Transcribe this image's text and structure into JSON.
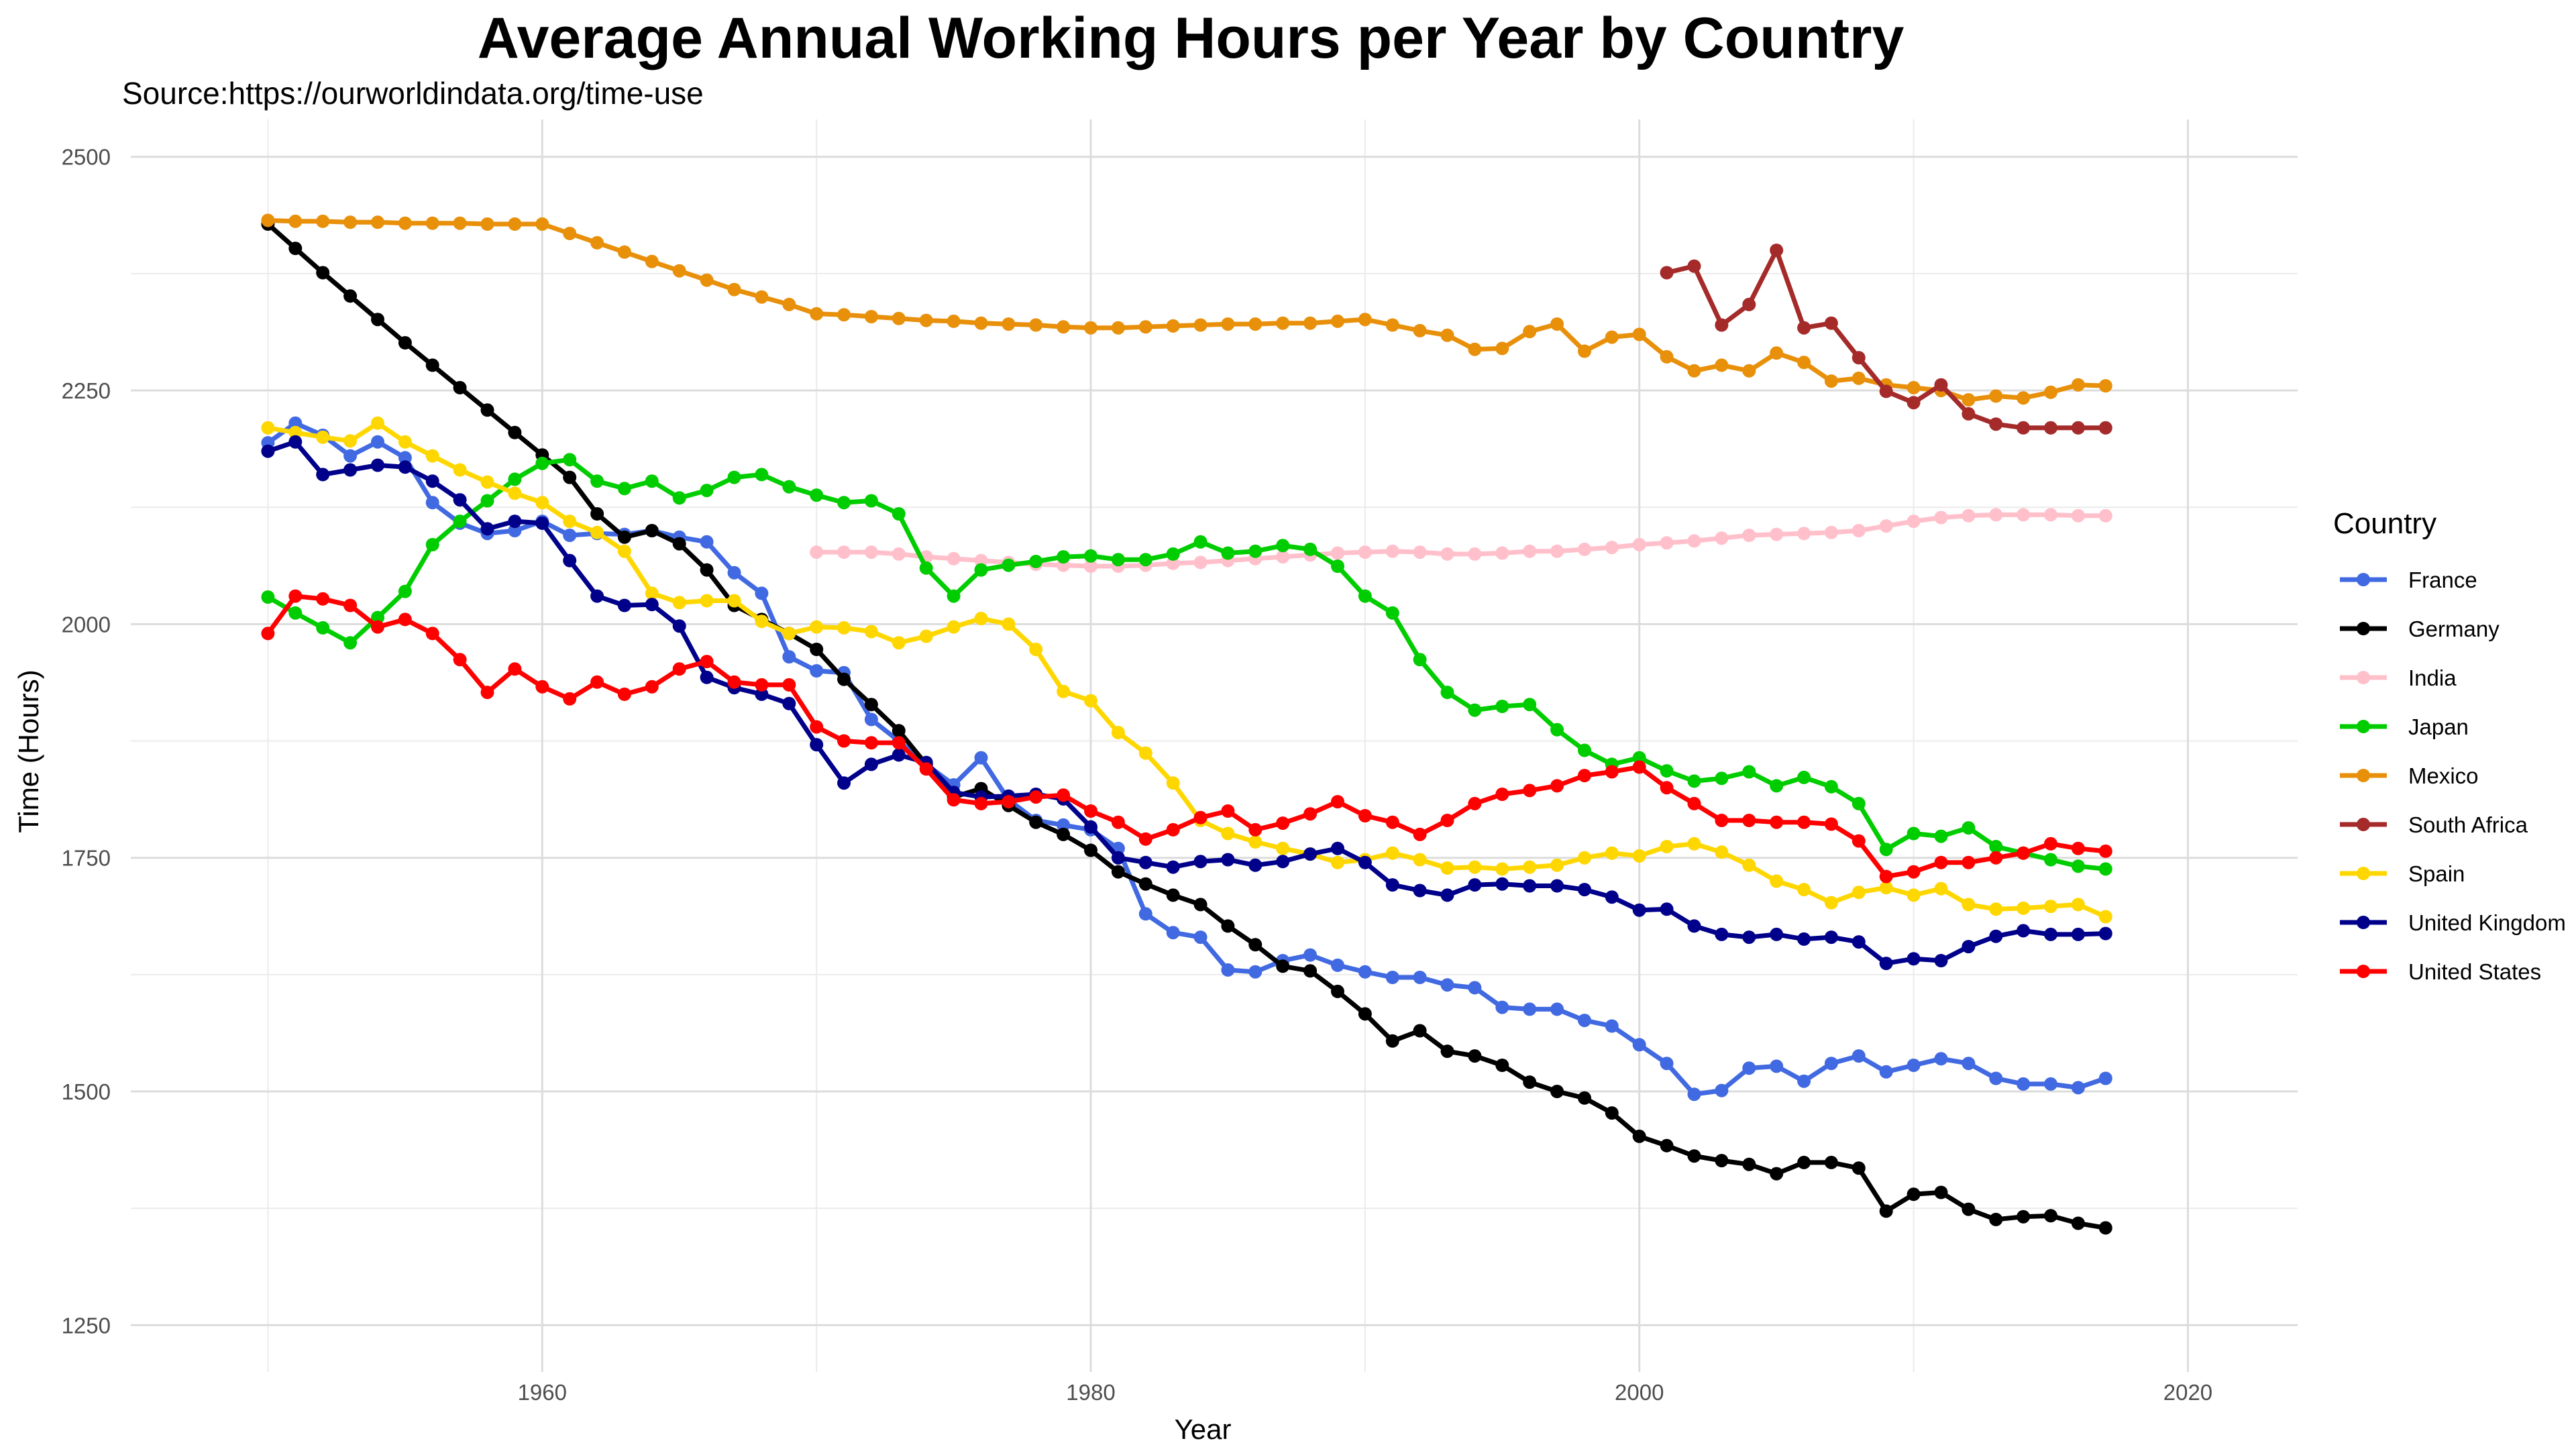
{
  "chart_data": {
    "type": "line",
    "title": "Average Annual Working Hours per Year by Country",
    "subtitle": "Source:https://ourworldindata.org/time-use",
    "xlabel": "Year",
    "ylabel": "Time (Hours)",
    "xlim": [
      1945,
      2024
    ],
    "ylim": [
      1200,
      2540
    ],
    "x_ticks": [
      1960,
      1980,
      2000,
      2020
    ],
    "y_ticks": [
      1250,
      1500,
      1750,
      2000,
      2250,
      2500
    ],
    "grid": true,
    "legend_title": "Country",
    "legend_position": "right",
    "series": [
      {
        "name": "France",
        "color": "#4169E1",
        "start_year": 1950,
        "values": [
          2194,
          2215,
          2202,
          2180,
          2195,
          2178,
          2130,
          2108,
          2097,
          2100,
          2110,
          2095,
          2097,
          2096,
          2100,
          2093,
          2088,
          2055,
          2033,
          1965,
          1950,
          1948,
          1898,
          1875,
          1850,
          1828,
          1857,
          1812,
          1790,
          1785,
          1780,
          1760,
          1690,
          1670,
          1665,
          1630,
          1628,
          1640,
          1646,
          1635,
          1628,
          1622,
          1622,
          1614,
          1611,
          1590,
          1588,
          1588,
          1576,
          1570,
          1550,
          1530,
          1497,
          1501,
          1525,
          1527,
          1511,
          1530,
          1538,
          1521,
          1528,
          1535,
          1530,
          1514,
          1508,
          1508,
          1504,
          1514
        ]
      },
      {
        "name": "Germany",
        "color": "#000000",
        "start_year": 1950,
        "values": [
          2428,
          2402,
          2376,
          2351,
          2326,
          2301,
          2277,
          2253,
          2229,
          2205,
          2181,
          2157,
          2118,
          2093,
          2100,
          2086,
          2058,
          2020,
          2005,
          1990,
          1973,
          1941,
          1914,
          1886,
          1850,
          1815,
          1824,
          1806,
          1788,
          1775,
          1758,
          1735,
          1722,
          1710,
          1700,
          1677,
          1657,
          1634,
          1629,
          1607,
          1583,
          1554,
          1565,
          1543,
          1538,
          1528,
          1510,
          1500,
          1493,
          1477,
          1452,
          1442,
          1431,
          1426,
          1422,
          1412,
          1424,
          1424,
          1418,
          1372,
          1390,
          1392,
          1374,
          1363,
          1366,
          1367,
          1359,
          1354
        ]
      },
      {
        "name": "India",
        "color": "#FFC0CB",
        "start_year": 1970,
        "values": [
          2077,
          2077,
          2077,
          2075,
          2072,
          2070,
          2068,
          2066,
          2064,
          2063,
          2062,
          2062,
          2063,
          2065,
          2066,
          2068,
          2070,
          2072,
          2074,
          2076,
          2077,
          2078,
          2077,
          2075,
          2075,
          2076,
          2078,
          2078,
          2080,
          2082,
          2085,
          2087,
          2089,
          2092,
          2095,
          2096,
          2097,
          2098,
          2100,
          2105,
          2110,
          2114,
          2116,
          2117,
          2117,
          2117,
          2116,
          2116
        ]
      },
      {
        "name": "Japan",
        "color": "#00CD00",
        "start_year": 1950,
        "values": [
          2029,
          2012,
          1996,
          1980,
          2007,
          2035,
          2085,
          2110,
          2132,
          2155,
          2172,
          2176,
          2153,
          2145,
          2153,
          2135,
          2143,
          2157,
          2160,
          2147,
          2138,
          2130,
          2132,
          2118,
          2060,
          2030,
          2058,
          2063,
          2067,
          2072,
          2073,
          2069,
          2069,
          2075,
          2088,
          2076,
          2078,
          2084,
          2080,
          2062,
          2030,
          2012,
          1962,
          1927,
          1908,
          1912,
          1914,
          1887,
          1865,
          1850,
          1857,
          1843,
          1832,
          1835,
          1842,
          1827,
          1836,
          1826,
          1808,
          1759,
          1776,
          1773,
          1782,
          1762,
          1755,
          1748,
          1741,
          1738
        ]
      },
      {
        "name": "Mexico",
        "color": "#E8900A",
        "start_year": 1950,
        "values": [
          2432,
          2431,
          2431,
          2430,
          2430,
          2429,
          2429,
          2429,
          2428,
          2428,
          2428,
          2418,
          2408,
          2398,
          2388,
          2378,
          2368,
          2358,
          2350,
          2342,
          2332,
          2331,
          2329,
          2327,
          2325,
          2324,
          2322,
          2321,
          2320,
          2318,
          2317,
          2317,
          2318,
          2319,
          2320,
          2321,
          2321,
          2322,
          2322,
          2324,
          2326,
          2320,
          2314,
          2309,
          2294,
          2295,
          2313,
          2321,
          2292,
          2307,
          2310,
          2286,
          2271,
          2277,
          2271,
          2290,
          2280,
          2260,
          2263,
          2256,
          2253,
          2250,
          2240,
          2244,
          2242,
          2248,
          2256,
          2255
        ]
      },
      {
        "name": "South Africa",
        "color": "#A52A2A",
        "start_year": 2001,
        "values": [
          2376,
          2383,
          2320,
          2342,
          2400,
          2317,
          2322,
          2285,
          2249,
          2237,
          2256,
          2225,
          2214,
          2210,
          2210,
          2210,
          2210
        ]
      },
      {
        "name": "Spain",
        "color": "#FFD700",
        "start_year": 1950,
        "values": [
          2210,
          2205,
          2200,
          2196,
          2215,
          2195,
          2180,
          2165,
          2152,
          2140,
          2130,
          2110,
          2098,
          2078,
          2033,
          2023,
          2025,
          2025,
          2003,
          1990,
          1997,
          1996,
          1992,
          1980,
          1987,
          1997,
          2006,
          2000,
          1973,
          1928,
          1918,
          1884,
          1862,
          1830,
          1790,
          1776,
          1767,
          1760,
          1754,
          1745,
          1748,
          1755,
          1748,
          1739,
          1740,
          1738,
          1740,
          1742,
          1750,
          1755,
          1752,
          1762,
          1765,
          1756,
          1742,
          1725,
          1716,
          1702,
          1713,
          1718,
          1710,
          1717,
          1700,
          1695,
          1696,
          1698,
          1700,
          1687
        ]
      },
      {
        "name": "United Kingdom",
        "color": "#00008B",
        "start_year": 1950,
        "values": [
          2185,
          2195,
          2160,
          2165,
          2170,
          2168,
          2153,
          2133,
          2102,
          2110,
          2108,
          2068,
          2030,
          2020,
          2021,
          1998,
          1943,
          1932,
          1925,
          1915,
          1871,
          1830,
          1850,
          1860,
          1852,
          1820,
          1815,
          1816,
          1818,
          1813,
          1783,
          1750,
          1745,
          1740,
          1746,
          1748,
          1742,
          1746,
          1754,
          1760,
          1745,
          1721,
          1715,
          1710,
          1721,
          1722,
          1720,
          1720,
          1716,
          1708,
          1694,
          1695,
          1677,
          1668,
          1665,
          1668,
          1663,
          1665,
          1660,
          1637,
          1642,
          1640,
          1655,
          1666,
          1672,
          1668,
          1668,
          1669
        ]
      },
      {
        "name": "United States",
        "color": "#FF0000",
        "start_year": 1950,
        "values": [
          1990,
          2030,
          2027,
          2020,
          1997,
          2005,
          1990,
          1962,
          1927,
          1952,
          1933,
          1920,
          1938,
          1925,
          1933,
          1952,
          1960,
          1938,
          1935,
          1935,
          1890,
          1875,
          1873,
          1873,
          1845,
          1812,
          1808,
          1810,
          1815,
          1817,
          1800,
          1788,
          1770,
          1780,
          1793,
          1800,
          1780,
          1787,
          1797,
          1810,
          1795,
          1788,
          1775,
          1790,
          1808,
          1818,
          1822,
          1827,
          1838,
          1842,
          1847,
          1825,
          1808,
          1790,
          1790,
          1788,
          1788,
          1786,
          1768,
          1730,
          1735,
          1745,
          1745,
          1750,
          1755,
          1765,
          1760,
          1757
        ]
      }
    ]
  }
}
